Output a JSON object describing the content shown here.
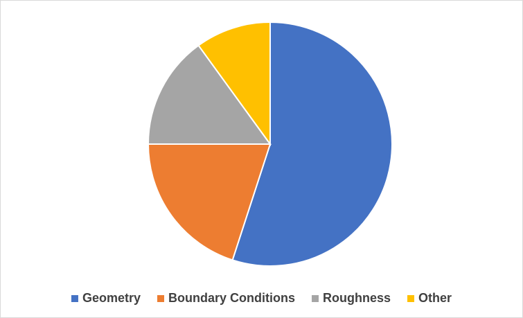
{
  "chart_data": {
    "type": "pie",
    "categories": [
      "Geometry",
      "Boundary Conditions",
      "Roughness",
      "Other"
    ],
    "values": [
      55,
      20,
      15,
      10
    ],
    "colors": [
      "#4472c4",
      "#ed7d31",
      "#a5a5a5",
      "#ffc000"
    ],
    "legend": "bottom"
  }
}
